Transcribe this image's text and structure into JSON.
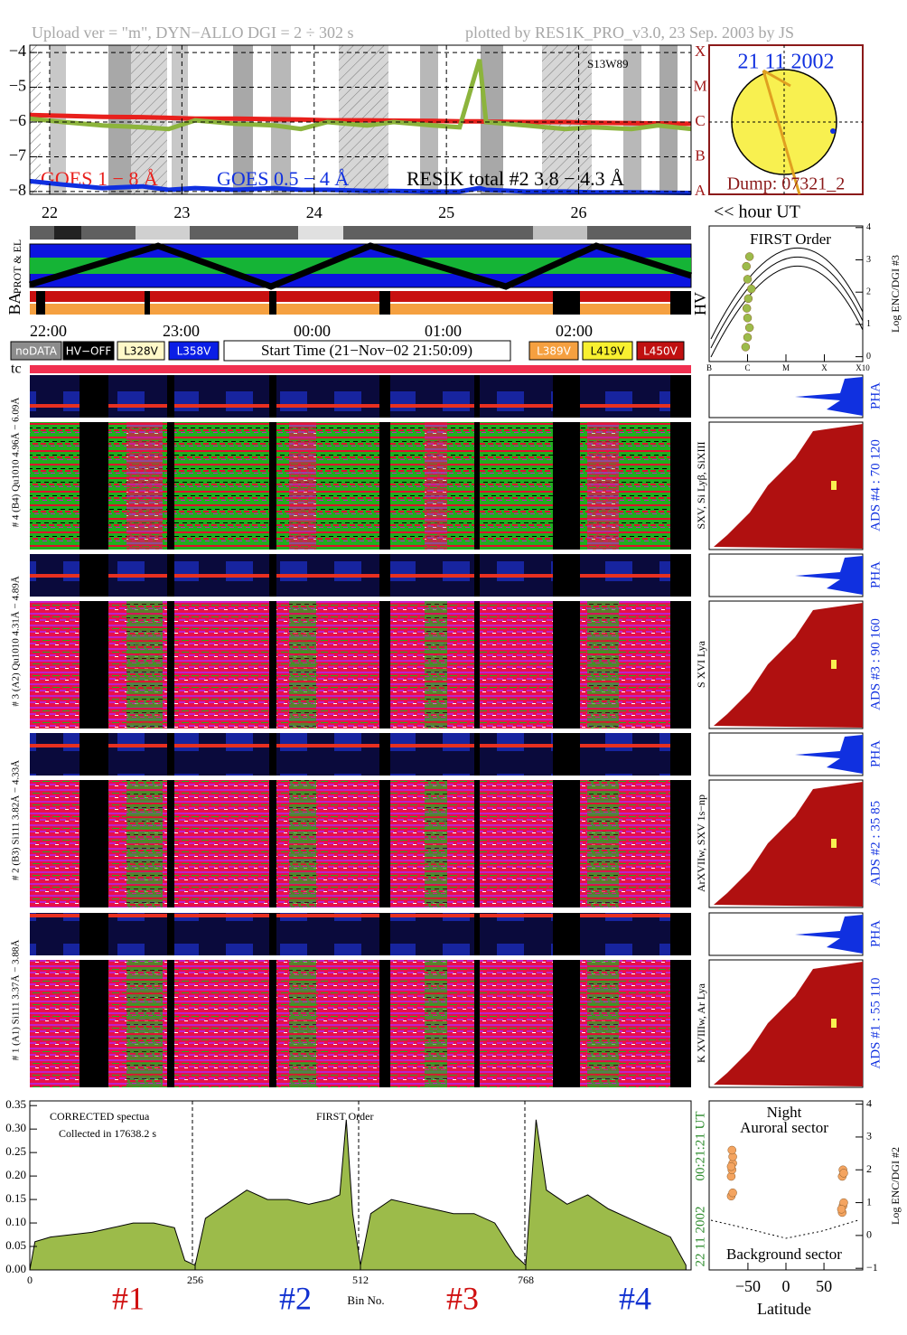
{
  "header": {
    "left": "Upload ver = \"m\", DYN−ALLO DGI =   2 ÷ 302 s",
    "right": "plotted by RES1K_PRO_v3.0, 23 Sep. 2003 by JS"
  },
  "sun": {
    "date": "21 11 2002",
    "dump": "Dump: 07321_2"
  },
  "strips": {
    "prot": "PROT & EL",
    "ba": "BA",
    "hv": "HV",
    "hour": "<< hour UT",
    "times": [
      "22:00",
      "23:00",
      "00:00",
      "01:00",
      "02:00"
    ]
  },
  "legend": {
    "items": [
      {
        "label": "noDATA",
        "color": "#8c8c8c",
        "text_color": "#ffffff"
      },
      {
        "label": "HV−OFF",
        "color": "#000000",
        "text_color": "#ffffff"
      },
      {
        "label": "L328V",
        "color": "#fff8c8",
        "text_color": "#000000"
      },
      {
        "label": "L358V",
        "color": "#0a1ee6",
        "text_color": "#ffffff"
      },
      {
        "label": "L389V",
        "color": "#f5a040",
        "text_color": "#ffffff"
      },
      {
        "label": "L419V",
        "color": "#f8f030",
        "text_color": "#000000"
      },
      {
        "label": "L450V",
        "color": "#c01010",
        "text_color": "#ffffff"
      }
    ],
    "start": "Start Time (21−Nov−02 21:50:09)"
  },
  "tc": "tc",
  "rows": [
    {
      "range": "# 4 (B4) Qu1010 4.96Å − 6.09Å",
      "pha": "PHA",
      "lines": "SXV, Si Lyβ, SiXIII",
      "ads": "ADS #4 :   70 120"
    },
    {
      "range": "# 3 (A2) Qu1010 4.31Å − 4.89Å",
      "pha": "PHA",
      "lines": "S XVI Lya",
      "ads": "ADS #3 :   90 160"
    },
    {
      "range": "# 2 (B3) Si111 3.82Å − 4.33Å",
      "pha": "PHA",
      "lines": "ArXVIIw, SXV 1s−np",
      "ads": "ADS #2 :   35 85"
    },
    {
      "range": "# 1 (A1) Si111 3.37Å − 3.88Å",
      "pha": "PHA",
      "lines": "K XVIIIw, Ar Lya",
      "ads": "ADS #1 :   55 110"
    }
  ],
  "chart_data": [
    {
      "type": "line",
      "x": [
        21.85,
        22.1,
        22.4,
        22.7,
        22.9,
        23.1,
        23.4,
        23.7,
        23.9,
        24.1,
        24.4,
        24.6,
        24.9,
        25.1,
        25.25,
        25.3,
        25.6,
        25.9,
        26.1,
        26.4,
        26.6,
        26.85
      ],
      "series": [
        {
          "name": "GOES 1 − 8 Å",
          "color": "#e8201c",
          "values": [
            -5.8,
            -5.82,
            -5.85,
            -5.86,
            -5.88,
            -5.9,
            -5.9,
            -5.92,
            -5.93,
            -5.95,
            -5.95,
            -5.96,
            -5.97,
            -5.98,
            -5.98,
            -5.99,
            -6.0,
            -6.0,
            -6.02,
            -6.03,
            -6.04,
            -6.05
          ]
        },
        {
          "name": "GOES 0.5 − 4 Å",
          "color": "#1030e0",
          "values": [
            -7.7,
            -7.8,
            -7.9,
            -7.85,
            -7.95,
            -7.9,
            -7.95,
            -7.9,
            -7.95,
            -7.95,
            -7.98,
            -7.98,
            -8.0,
            -8.0,
            -7.9,
            -7.95,
            -8.0,
            -8.0,
            -8.02,
            -8.02,
            -8.03,
            -8.04
          ]
        },
        {
          "name": "RESIK total #2  3.8 − 4.3 Å",
          "color": "#8cb43c",
          "legend_color": "#000000",
          "values": [
            -5.9,
            -6.0,
            -6.1,
            -6.15,
            -6.2,
            -5.95,
            -6.05,
            -6.1,
            -6.2,
            -6.0,
            -6.1,
            -6.0,
            -6.1,
            -6.15,
            -4.2,
            -6.0,
            -6.1,
            -6.2,
            -6.15,
            -6.2,
            -6.1,
            -6.2
          ]
        }
      ],
      "xlim": [
        21.85,
        26.85
      ],
      "xticks": [
        22,
        23,
        24,
        25,
        26
      ],
      "ylim": [
        -8.08,
        -3.79
      ],
      "yticks": [
        {
          "value": -4,
          "label": "−4"
        },
        {
          "value": -5,
          "label": "−5"
        },
        {
          "value": -6,
          "label": "−6"
        },
        {
          "value": -7,
          "label": "−7"
        },
        {
          "value": -8,
          "label": "−8"
        }
      ],
      "flare_classes": [
        "X",
        "M",
        "C",
        "B",
        "A"
      ],
      "annotation": "S13W89",
      "grid": true
    },
    {
      "type": "area",
      "x": [
        0,
        8,
        32,
        64,
        96,
        128,
        160,
        192,
        224,
        240,
        256,
        272,
        304,
        336,
        368,
        400,
        432,
        464,
        480,
        490,
        500,
        512,
        528,
        560,
        592,
        624,
        656,
        688,
        720,
        752,
        768,
        784,
        800,
        832,
        864,
        896,
        928,
        960,
        992,
        1016
      ],
      "values": [
        0.0,
        0.06,
        0.07,
        0.075,
        0.08,
        0.09,
        0.1,
        0.1,
        0.09,
        0.02,
        0.01,
        0.11,
        0.14,
        0.17,
        0.15,
        0.15,
        0.14,
        0.15,
        0.16,
        0.32,
        0.12,
        0.01,
        0.12,
        0.15,
        0.14,
        0.13,
        0.12,
        0.12,
        0.1,
        0.03,
        0.01,
        0.32,
        0.17,
        0.14,
        0.16,
        0.13,
        0.11,
        0.09,
        0.07,
        0.01
      ],
      "color": "#9cbb4a",
      "line_color": "#000000",
      "xlim": [
        0,
        1024
      ],
      "xticks": [
        0,
        256,
        512,
        768
      ],
      "ylim": [
        0,
        0.36
      ],
      "yticks": [
        {
          "value": 0,
          "label": "0.00"
        },
        {
          "value": 0.05,
          "label": "0.05"
        },
        {
          "value": 0.1,
          "label": "0.10"
        },
        {
          "value": 0.15,
          "label": "0.15"
        },
        {
          "value": 0.2,
          "label": "0.20"
        },
        {
          "value": 0.25,
          "label": "0.25"
        },
        {
          "value": 0.3,
          "label": "0.30"
        },
        {
          "value": 0.35,
          "label": "0.35"
        }
      ],
      "title": "CORRECTED spectua",
      "subtitle": "Collected in 17638.2 s",
      "annotation": "FIRST Order",
      "x_label": "Bin No.",
      "sections": [
        "#1",
        "#2",
        "#3",
        "#4"
      ],
      "date": "22 11 2002",
      "time": "00:21:21 UT",
      "grid": false
    },
    {
      "type": "scatter",
      "x": [
        -72,
        -72,
        -71,
        -70,
        -70,
        -71,
        -72,
        -70,
        74,
        75,
        76,
        74,
        75,
        73,
        76
      ],
      "y": [
        1.2,
        1.8,
        2.0,
        2.2,
        2.4,
        2.6,
        2.1,
        1.3,
        0.7,
        0.9,
        1.0,
        1.8,
        2.0,
        0.8,
        1.9
      ],
      "color": "#f4a460",
      "xlim": [
        -101,
        101
      ],
      "xticks": [
        {
          "value": -50,
          "label": "−50"
        },
        0,
        50
      ],
      "ylim": [
        -1.05,
        4.1
      ],
      "yticks": [
        {
          "value": -1,
          "label": "−1"
        },
        0,
        1,
        2,
        3,
        4
      ],
      "title": "Night",
      "subtitle": "Auroral sector",
      "annotation": "Background sector",
      "x_label": "Latitude",
      "y_label": "Log ENC/DGI #2",
      "grid": false
    },
    {
      "type": "scatter",
      "x": [
        0.95,
        1.0,
        1.05,
        1.0,
        0.98,
        1.02,
        1.1,
        1.0,
        0.97,
        1.05
      ],
      "y": [
        0.3,
        0.6,
        0.9,
        1.2,
        1.5,
        1.8,
        2.1,
        2.4,
        2.8,
        3.1
      ],
      "color": "#9cbb4a",
      "xlim": [
        0,
        4
      ],
      "xticks": [
        {
          "value": 0,
          "label": "B"
        },
        {
          "value": 1,
          "label": "C"
        },
        {
          "value": 2,
          "label": "M"
        },
        {
          "value": 3,
          "label": "X"
        },
        {
          "value": 4,
          "label": "X10"
        }
      ],
      "ylim": [
        -0.15,
        4.05
      ],
      "yticks": [
        0,
        1,
        2,
        3,
        4
      ],
      "title": "FIRST Order",
      "y_label": "Log ENC/DGI #3",
      "grid": false
    }
  ]
}
